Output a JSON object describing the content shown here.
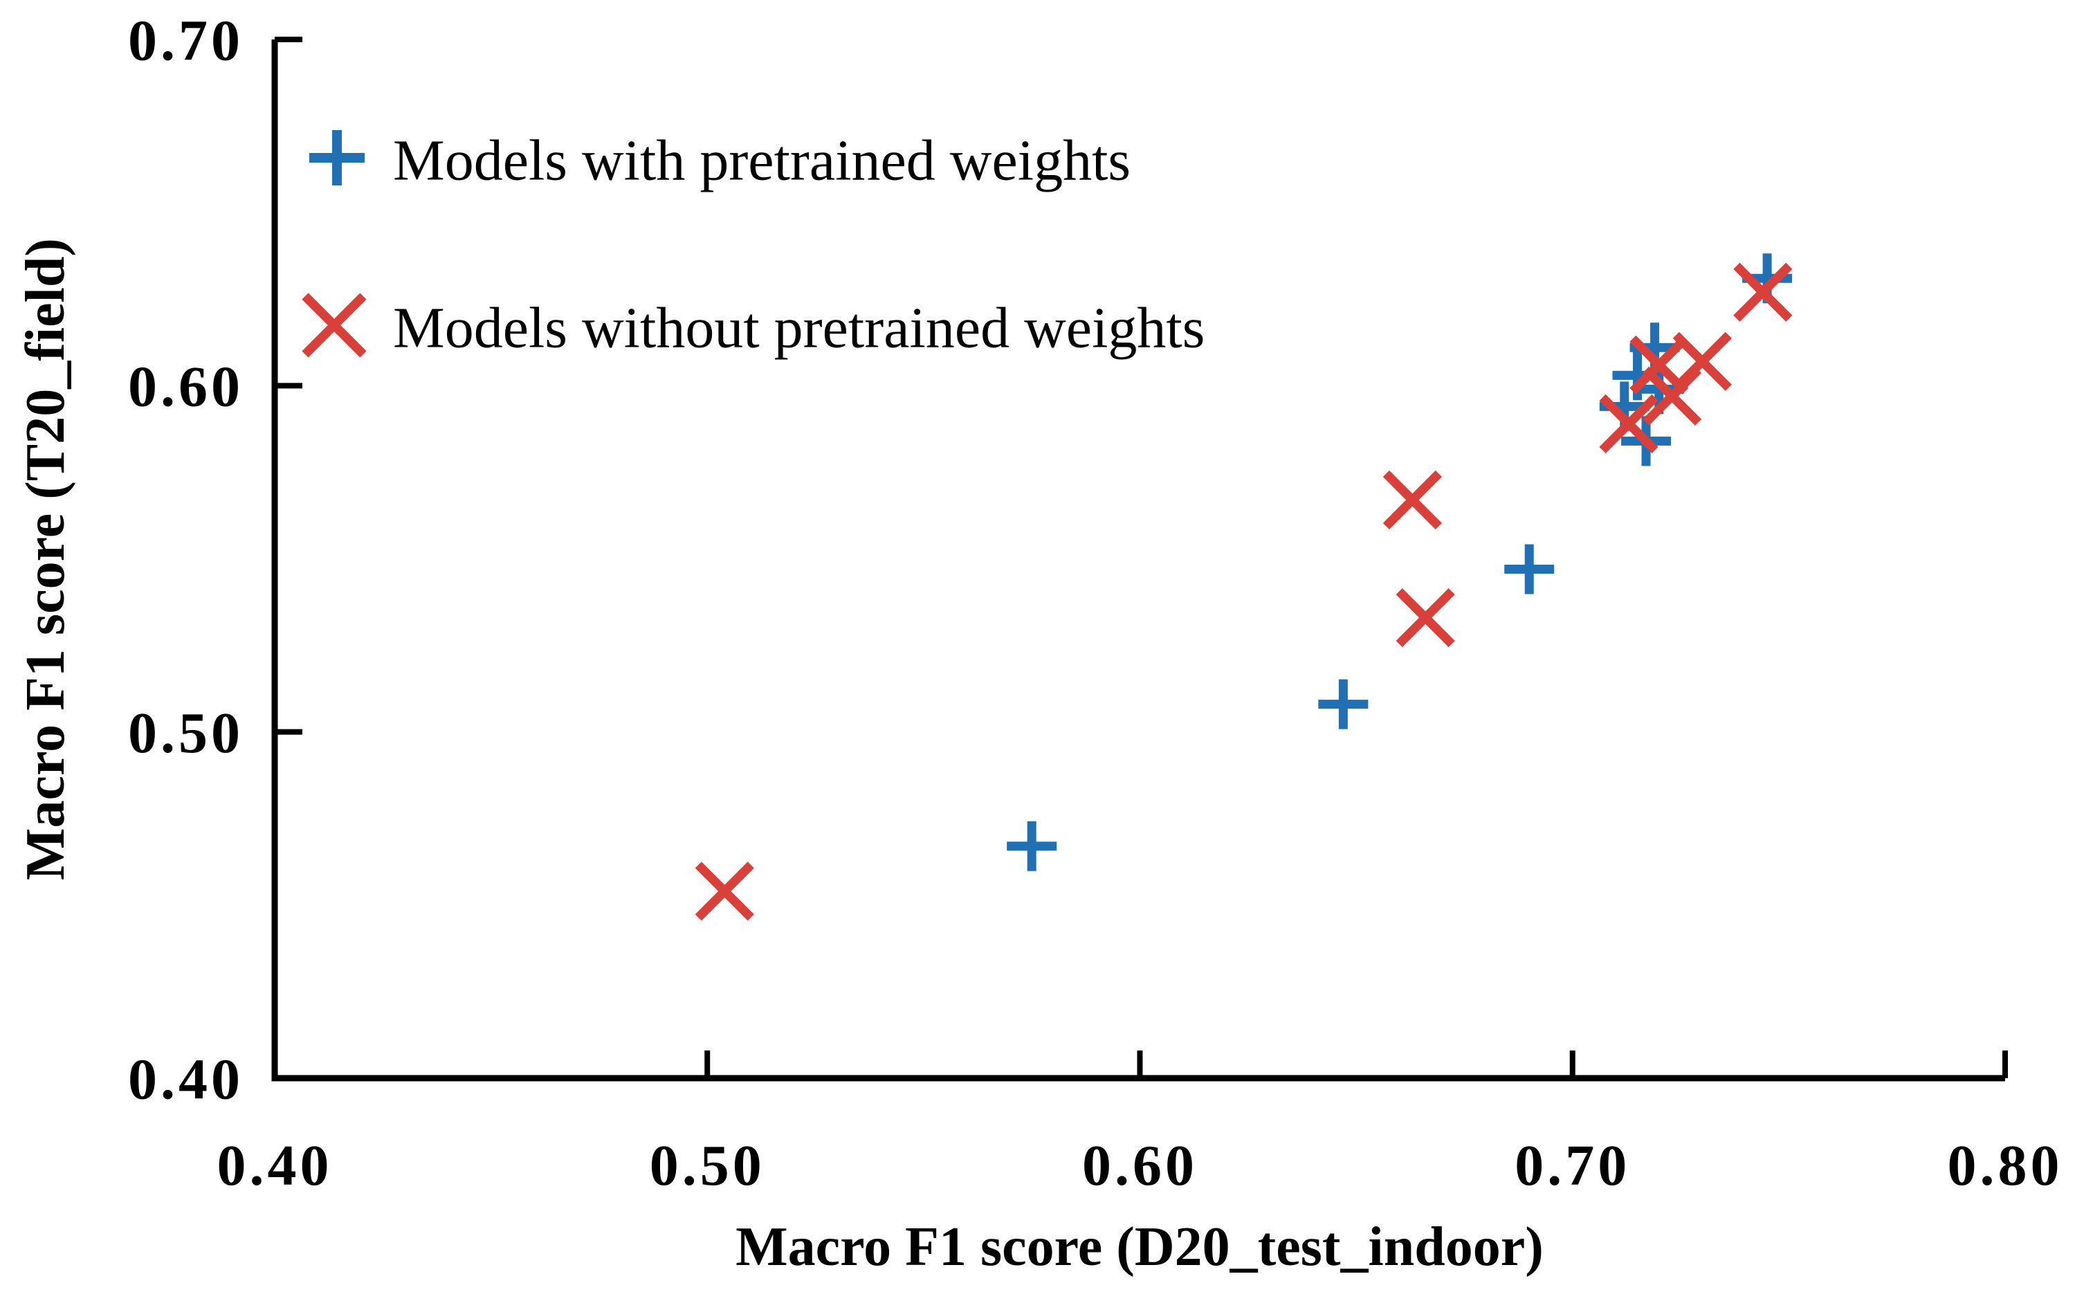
{
  "figure": {
    "background_color": "#ffffff",
    "axis_color": "#000000",
    "text_color": "#000000"
  },
  "chart_data": {
    "type": "scatter",
    "title": "",
    "xlabel": "Macro F1 score (D20_test_indoor)",
    "ylabel": "Macro F1 score (T20_field)",
    "xlim": [
      0.4,
      0.8
    ],
    "ylim": [
      0.4,
      0.7
    ],
    "x_ticks": [
      0.4,
      0.5,
      0.6,
      0.7,
      0.8
    ],
    "x_tick_labels": [
      "0.40",
      "0.50",
      "0.60",
      "0.70",
      "0.80"
    ],
    "y_ticks": [
      0.4,
      0.5,
      0.6,
      0.7
    ],
    "y_tick_labels": [
      "0.40",
      "0.50",
      "0.60",
      "0.70"
    ],
    "grid": false,
    "legend_position": "upper-left-inside",
    "series": [
      {
        "name": "Models with pretrained weights",
        "marker": "plus",
        "color": "#2170b4",
        "points": [
          [
            0.575,
            0.467
          ],
          [
            0.647,
            0.508
          ],
          [
            0.69,
            0.547
          ],
          [
            0.712,
            0.594
          ],
          [
            0.715,
            0.603
          ],
          [
            0.717,
            0.584
          ],
          [
            0.719,
            0.611
          ],
          [
            0.72,
            0.599
          ],
          [
            0.745,
            0.631
          ]
        ]
      },
      {
        "name": "Models without pretrained weights",
        "marker": "x",
        "color": "#d9403a",
        "points": [
          [
            0.504,
            0.454
          ],
          [
            0.663,
            0.567
          ],
          [
            0.666,
            0.533
          ],
          [
            0.713,
            0.589
          ],
          [
            0.72,
            0.606
          ],
          [
            0.723,
            0.597
          ],
          [
            0.73,
            0.607
          ],
          [
            0.744,
            0.627
          ]
        ]
      }
    ]
  }
}
